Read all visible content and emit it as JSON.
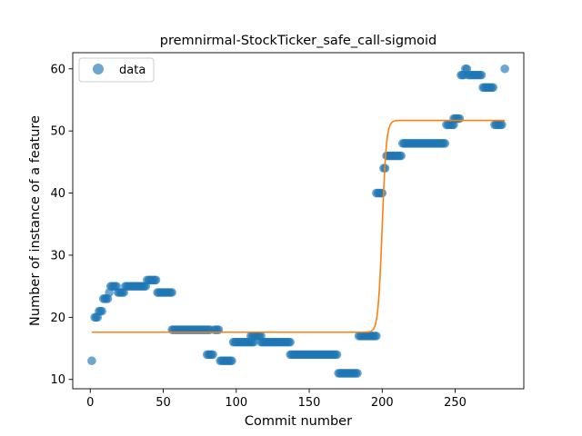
{
  "chart_data": {
    "type": "scatter",
    "title": "premnirmal-StockTicker_safe_call-sigmoid",
    "xlabel": "Commit number",
    "ylabel": "Number of instance of a feature",
    "xlim": [
      -12,
      297
    ],
    "ylim": [
      8.5,
      62.6
    ],
    "xticks": [
      0,
      50,
      100,
      150,
      200,
      250
    ],
    "yticks": [
      10,
      20,
      30,
      40,
      50,
      60
    ],
    "grid": false,
    "legend": {
      "position": "upper-left",
      "entries": [
        "data"
      ]
    },
    "series": [
      {
        "name": "data",
        "kind": "scatter",
        "color": "#1f77b4",
        "opacity": 0.65,
        "runs": [
          [
            1,
            1,
            13
          ],
          [
            3,
            5,
            20
          ],
          [
            6,
            8,
            21
          ],
          [
            9,
            12,
            23
          ],
          [
            13,
            13,
            24
          ],
          [
            14,
            18,
            25
          ],
          [
            19,
            23,
            24
          ],
          [
            24,
            38,
            25
          ],
          [
            39,
            45,
            26
          ],
          [
            46,
            56,
            24
          ],
          [
            56,
            82,
            18
          ],
          [
            80,
            84,
            14
          ],
          [
            85,
            88,
            18
          ],
          [
            89,
            97,
            13
          ],
          [
            98,
            112,
            16
          ],
          [
            110,
            117,
            17
          ],
          [
            117,
            137,
            16
          ],
          [
            137,
            169,
            14
          ],
          [
            170,
            183,
            11
          ],
          [
            184,
            196,
            17
          ],
          [
            196,
            200,
            40
          ],
          [
            201,
            202,
            44
          ],
          [
            203,
            213,
            46
          ],
          [
            214,
            243,
            48
          ],
          [
            244,
            249,
            51
          ],
          [
            249,
            253,
            52
          ],
          [
            254,
            256,
            59
          ],
          [
            257,
            258,
            60
          ],
          [
            259,
            268,
            59
          ],
          [
            269,
            276,
            57
          ],
          [
            277,
            282,
            51
          ],
          [
            284,
            284,
            60
          ]
        ]
      },
      {
        "name": "sigmoid fit",
        "kind": "line",
        "color": "#ff7f0e",
        "low": 17.6,
        "high": 51.7,
        "midpoint": 200,
        "steepness": 0.7,
        "x_range": [
          1,
          284
        ]
      }
    ]
  }
}
